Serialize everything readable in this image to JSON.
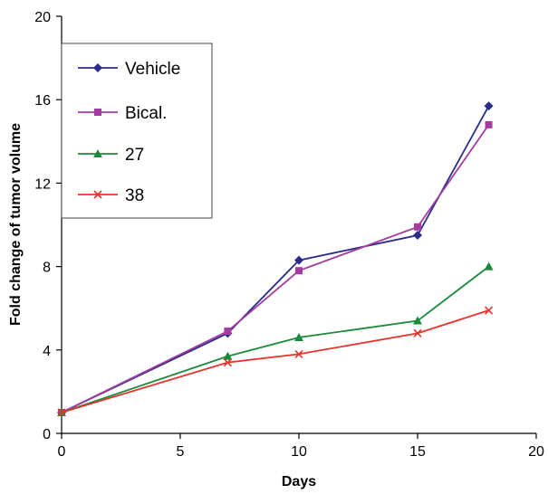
{
  "chart_data": {
    "type": "line",
    "title": "",
    "xlabel": "Days",
    "ylabel": "Fold change of tumor volume",
    "xlim": [
      0,
      20
    ],
    "ylim": [
      0,
      20
    ],
    "xticks": [
      "0",
      "5",
      "10",
      "15",
      "20"
    ],
    "yticks": [
      "0",
      "4",
      "8",
      "12",
      "16",
      "20"
    ],
    "grid": false,
    "legend_position": "top-left",
    "x": [
      0,
      7,
      10,
      15,
      18
    ],
    "series": [
      {
        "name": "Vehicle",
        "marker": "diamond",
        "color": "#2b2b8c",
        "values": [
          1.0,
          4.8,
          8.3,
          9.5,
          15.7
        ]
      },
      {
        "name": "Bical.",
        "marker": "square",
        "color": "#a23c9e",
        "values": [
          1.0,
          4.9,
          7.8,
          9.9,
          14.8
        ]
      },
      {
        "name": "27",
        "marker": "triangle",
        "color": "#1a8a3a",
        "values": [
          1.0,
          3.7,
          4.6,
          5.4,
          8.0
        ]
      },
      {
        "name": "38",
        "marker": "x",
        "color": "#e8332b",
        "values": [
          1.0,
          3.4,
          3.8,
          4.8,
          5.9
        ]
      }
    ]
  }
}
